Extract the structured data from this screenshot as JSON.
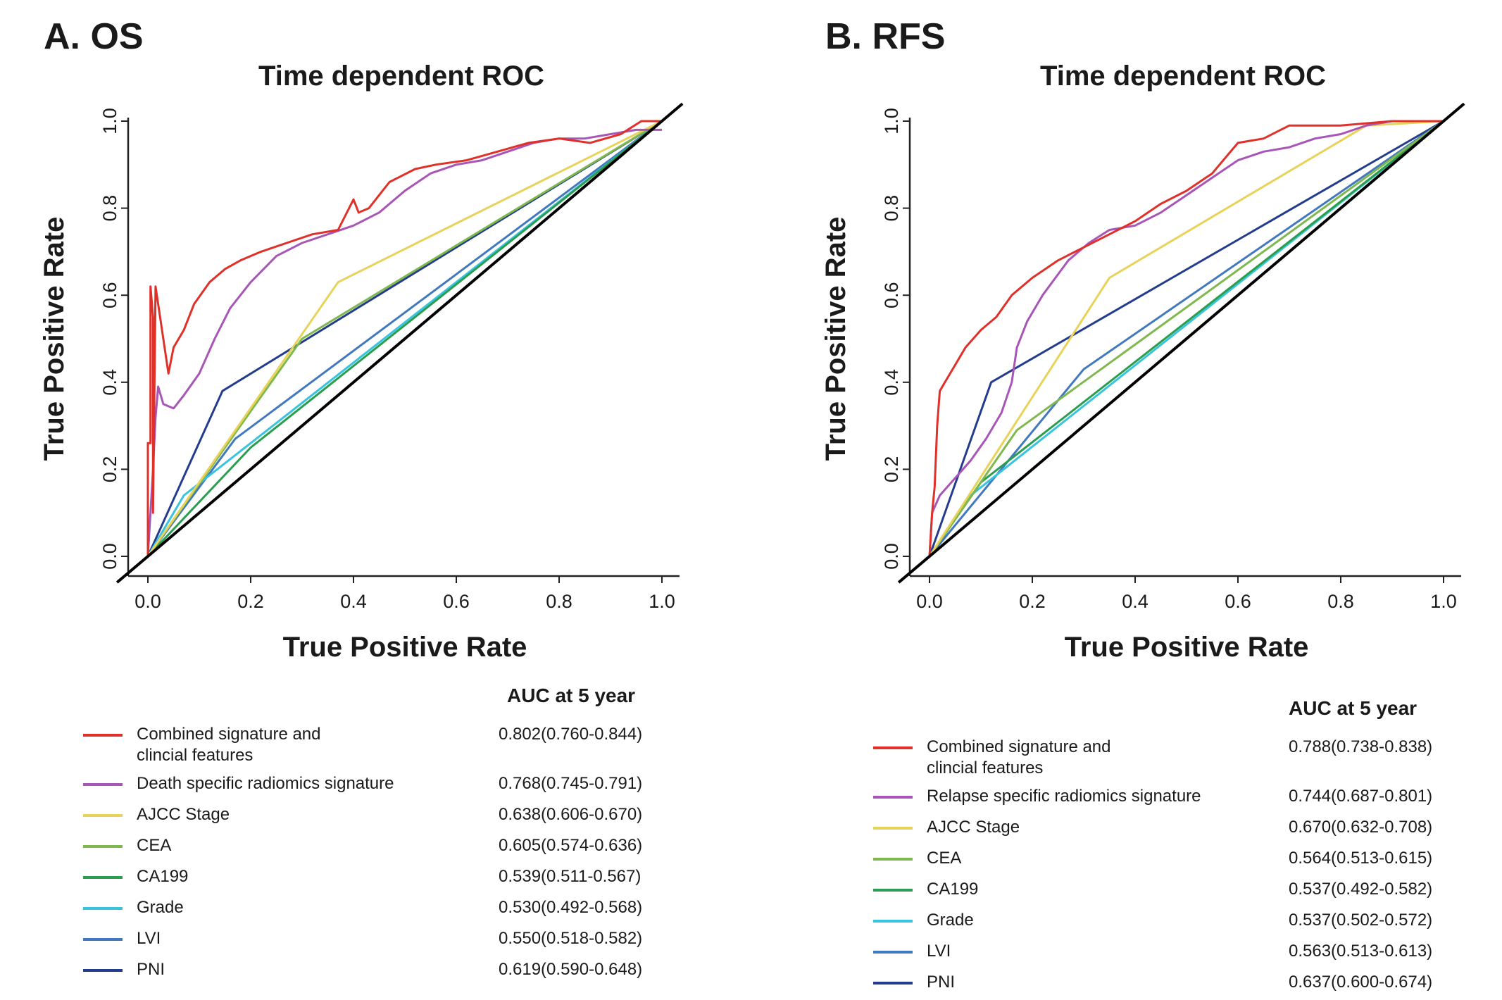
{
  "chart_data": [
    {
      "type": "line",
      "panel_label": "A. OS",
      "title": "Time dependent ROC",
      "xlabel": "True Positive Rate",
      "ylabel": "True Positive Rate",
      "xlim": [
        0,
        1
      ],
      "ylim": [
        0,
        1
      ],
      "xticks": [
        "0.0",
        "0.2",
        "0.4",
        "0.6",
        "0.8",
        "1.0"
      ],
      "yticks": [
        "0.0",
        "0.2",
        "0.4",
        "0.6",
        "0.8",
        "1.0"
      ],
      "legend_title": "AUC at 5 year",
      "legend_position": "below",
      "series": [
        {
          "name_lines": [
            "Combined signature and",
            "clincial features"
          ],
          "auc": "0.802(0.760-0.844)",
          "color": "#e0302a",
          "x": [
            0,
            0,
            0.005,
            0.005,
            0.01,
            0.01,
            0.015,
            0.03,
            0.04,
            0.05,
            0.07,
            0.09,
            0.12,
            0.15,
            0.18,
            0.22,
            0.27,
            0.32,
            0.37,
            0.4,
            0.41,
            0.43,
            0.47,
            0.52,
            0.56,
            0.62,
            0.68,
            0.74,
            0.8,
            0.86,
            0.92,
            0.96,
            1.0
          ],
          "y": [
            0,
            0.26,
            0.26,
            0.62,
            0.55,
            0.1,
            0.62,
            0.5,
            0.42,
            0.48,
            0.52,
            0.58,
            0.63,
            0.66,
            0.68,
            0.7,
            0.72,
            0.74,
            0.75,
            0.82,
            0.79,
            0.8,
            0.86,
            0.89,
            0.9,
            0.91,
            0.93,
            0.95,
            0.96,
            0.95,
            0.97,
            1.0,
            1.0
          ]
        },
        {
          "name_lines": [
            "Death specific radiomics signature"
          ],
          "auc": "0.768(0.745-0.791)",
          "color": "#a855b8",
          "x": [
            0,
            0.005,
            0.01,
            0.015,
            0.02,
            0.03,
            0.05,
            0.07,
            0.1,
            0.13,
            0.16,
            0.2,
            0.25,
            0.3,
            0.35,
            0.4,
            0.45,
            0.5,
            0.55,
            0.6,
            0.65,
            0.7,
            0.75,
            0.8,
            0.85,
            0.9,
            0.95,
            1.0
          ],
          "y": [
            0,
            0.1,
            0.2,
            0.32,
            0.39,
            0.35,
            0.34,
            0.37,
            0.42,
            0.5,
            0.57,
            0.63,
            0.69,
            0.72,
            0.74,
            0.76,
            0.79,
            0.84,
            0.88,
            0.9,
            0.91,
            0.93,
            0.95,
            0.96,
            0.96,
            0.97,
            0.98,
            0.98
          ]
        },
        {
          "name_lines": [
            "AJCC Stage"
          ],
          "auc": "0.638(0.606-0.670)",
          "color": "#e8d35a",
          "x": [
            0,
            0.37,
            1
          ],
          "y": [
            0,
            0.63,
            1
          ]
        },
        {
          "name_lines": [
            "CEA"
          ],
          "auc": "0.605(0.574-0.636)",
          "color": "#7fb84e",
          "x": [
            0,
            0.3,
            1
          ],
          "y": [
            0,
            0.5,
            1
          ]
        },
        {
          "name_lines": [
            "CA199"
          ],
          "auc": "0.539(0.511-0.567)",
          "color": "#2a9e4e",
          "x": [
            0,
            0.2,
            1
          ],
          "y": [
            0,
            0.25,
            1
          ]
        },
        {
          "name_lines": [
            "Grade"
          ],
          "auc": "0.530(0.492-0.568)",
          "color": "#38c3df",
          "x": [
            0,
            0.07,
            1
          ],
          "y": [
            0,
            0.14,
            1
          ]
        },
        {
          "name_lines": [
            "LVI"
          ],
          "auc": "0.550(0.518-0.582)",
          "color": "#4178c0",
          "x": [
            0,
            0.17,
            1
          ],
          "y": [
            0,
            0.27,
            1
          ]
        },
        {
          "name_lines": [
            "PNI"
          ],
          "auc": "0.619(0.590-0.648)",
          "color": "#233c8e",
          "x": [
            0,
            0.145,
            1
          ],
          "y": [
            0,
            0.38,
            1
          ]
        }
      ]
    },
    {
      "type": "line",
      "panel_label": "B. RFS",
      "title": "Time dependent ROC",
      "xlabel": "True Positive Rate",
      "ylabel": "True Positive Rate",
      "xlim": [
        0,
        1
      ],
      "ylim": [
        0,
        1
      ],
      "xticks": [
        "0.0",
        "0.2",
        "0.4",
        "0.6",
        "0.8",
        "1.0"
      ],
      "yticks": [
        "0.0",
        "0.2",
        "0.4",
        "0.6",
        "0.8",
        "1.0"
      ],
      "legend_title": "AUC at 5 year",
      "legend_position": "below",
      "series": [
        {
          "name_lines": [
            "Combined signature and",
            "clincial features"
          ],
          "auc": "0.788(0.738-0.838)",
          "color": "#e0302a",
          "x": [
            0,
            0.005,
            0.01,
            0.015,
            0.02,
            0.03,
            0.05,
            0.07,
            0.1,
            0.13,
            0.16,
            0.2,
            0.25,
            0.3,
            0.35,
            0.4,
            0.45,
            0.5,
            0.55,
            0.6,
            0.65,
            0.7,
            0.8,
            0.9,
            1.0
          ],
          "y": [
            0,
            0.1,
            0.16,
            0.3,
            0.38,
            0.4,
            0.44,
            0.48,
            0.52,
            0.55,
            0.6,
            0.64,
            0.68,
            0.71,
            0.74,
            0.77,
            0.81,
            0.84,
            0.88,
            0.95,
            0.96,
            0.99,
            0.99,
            1.0,
            1.0
          ]
        },
        {
          "name_lines": [
            "Relapse specific radiomics signature"
          ],
          "auc": "0.744(0.687-0.801)",
          "color": "#a855b8",
          "x": [
            0,
            0.005,
            0.02,
            0.05,
            0.08,
            0.11,
            0.14,
            0.16,
            0.17,
            0.19,
            0.22,
            0.27,
            0.31,
            0.35,
            0.4,
            0.45,
            0.5,
            0.55,
            0.6,
            0.65,
            0.7,
            0.75,
            0.8,
            0.85,
            0.9,
            0.95,
            1.0
          ],
          "y": [
            0,
            0.1,
            0.14,
            0.18,
            0.22,
            0.27,
            0.33,
            0.4,
            0.48,
            0.54,
            0.6,
            0.68,
            0.72,
            0.75,
            0.76,
            0.79,
            0.83,
            0.87,
            0.91,
            0.93,
            0.94,
            0.96,
            0.97,
            0.99,
            1.0,
            1.0,
            1.0
          ]
        },
        {
          "name_lines": [
            "AJCC Stage"
          ],
          "auc": "0.670(0.632-0.708)",
          "color": "#e8d35a",
          "x": [
            0,
            0.35,
            0.85,
            1
          ],
          "y": [
            0,
            0.64,
            0.99,
            1
          ]
        },
        {
          "name_lines": [
            "CEA"
          ],
          "auc": "0.564(0.513-0.615)",
          "color": "#7fb84e",
          "x": [
            0,
            0.17,
            1
          ],
          "y": [
            0,
            0.29,
            1
          ]
        },
        {
          "name_lines": [
            "CA199"
          ],
          "auc": "0.537(0.492-0.582)",
          "color": "#2a9e4e",
          "x": [
            0,
            0.1,
            1
          ],
          "y": [
            0,
            0.17,
            1
          ]
        },
        {
          "name_lines": [
            "Grade"
          ],
          "auc": "0.537(0.502-0.572)",
          "color": "#38c3df",
          "x": [
            0,
            0.08,
            1
          ],
          "y": [
            0,
            0.14,
            1
          ]
        },
        {
          "name_lines": [
            "LVI"
          ],
          "auc": "0.563(0.513-0.613)",
          "color": "#4178c0",
          "x": [
            0,
            0.3,
            1
          ],
          "y": [
            0,
            0.43,
            1
          ]
        },
        {
          "name_lines": [
            "PNI"
          ],
          "auc": "0.637(0.600-0.674)",
          "color": "#233c8e",
          "x": [
            0,
            0.12,
            1
          ],
          "y": [
            0,
            0.4,
            1
          ]
        }
      ]
    }
  ]
}
